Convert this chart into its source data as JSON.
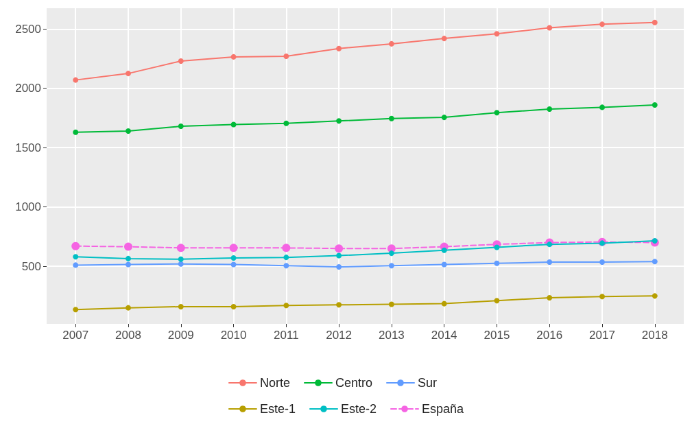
{
  "chart_data": {
    "type": "line",
    "x": [
      2007,
      2008,
      2009,
      2010,
      2011,
      2012,
      2013,
      2014,
      2015,
      2016,
      2017,
      2018
    ],
    "xlim": [
      2006.45,
      2018.55
    ],
    "xticks": [
      2007,
      2008,
      2009,
      2010,
      2011,
      2012,
      2013,
      2014,
      2015,
      2016,
      2017,
      2018
    ],
    "ylim": [
      15,
      2675
    ],
    "yticks": [
      500,
      1000,
      1500,
      2000,
      2500
    ],
    "grid": true,
    "legend": "bottom",
    "marker": "circle",
    "series": [
      {
        "name": "Norte",
        "color": "#f8766d",
        "values": [
          2070,
          2125,
          2230,
          2265,
          2270,
          2335,
          2375,
          2420,
          2460,
          2510,
          2540,
          2555
        ]
      },
      {
        "name": "Centro",
        "color": "#00ba38",
        "values": [
          1630,
          1640,
          1680,
          1695,
          1705,
          1725,
          1745,
          1755,
          1795,
          1825,
          1840,
          1860
        ]
      },
      {
        "name": "Sur",
        "color": "#619cff",
        "values": [
          510,
          515,
          520,
          515,
          505,
          495,
          505,
          515,
          525,
          535,
          535,
          540
        ]
      },
      {
        "name": "Este-1",
        "color": "#b79f00",
        "values": [
          135,
          150,
          160,
          160,
          170,
          175,
          180,
          185,
          210,
          235,
          245,
          250
        ]
      },
      {
        "name": "Este-2",
        "color": "#00bfc4",
        "values": [
          580,
          565,
          560,
          570,
          575,
          590,
          610,
          635,
          660,
          685,
          695,
          715
        ]
      },
      {
        "name": "España",
        "color": "#f564e3",
        "line_style": "dashed",
        "values": [
          670,
          665,
          655,
          655,
          655,
          650,
          650,
          665,
          685,
          700,
          705,
          700
        ]
      }
    ]
  }
}
